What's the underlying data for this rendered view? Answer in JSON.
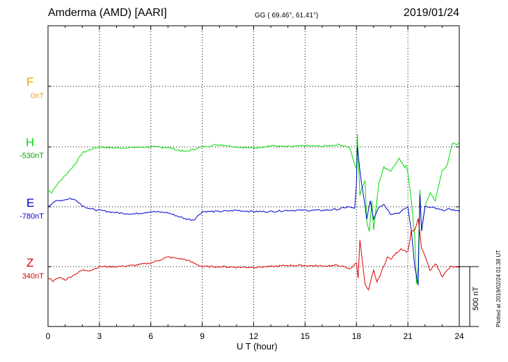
{
  "header": {
    "station": "Amderma (AMD)  [AARI]",
    "coords": "GG ( 69.46°,  61.41°)",
    "date": "2019/01/24"
  },
  "plot_note": "Plotted at 2019/02/24 01:38 UT",
  "chart_data": {
    "type": "line",
    "xlabel": "U T (hour)",
    "xlim": [
      0,
      24
    ],
    "xticks": [
      "0",
      "3",
      "6",
      "9",
      "12",
      "15",
      "18",
      "21",
      "24"
    ],
    "grid": true,
    "scale_bar": {
      "label": "500 nT",
      "value_nT": 500
    },
    "colors": {
      "F": "#f0a000",
      "H": "#00dd00",
      "E": "#0000cc",
      "Z": "#dd0000"
    },
    "series": [
      {
        "name": "F",
        "baseline": "0nT",
        "x": [],
        "y": []
      },
      {
        "name": "H",
        "baseline": "-530nT",
        "x": [
          0,
          0.2,
          0.5,
          0.8,
          1.0,
          1.3,
          1.6,
          2.0,
          2.5,
          3.0,
          4.0,
          5.0,
          6.0,
          7.0,
          8.0,
          9.0,
          10.0,
          11.0,
          12.0,
          13.0,
          14.0,
          15.0,
          16.0,
          17.0,
          17.6,
          17.9,
          18.0,
          18.05,
          18.2,
          18.3,
          18.5,
          18.6,
          18.75,
          18.9,
          19.0,
          19.3,
          19.6,
          20.0,
          20.5,
          20.8,
          20.9,
          21.0,
          21.2,
          21.4,
          21.5,
          21.6,
          21.7,
          21.8,
          22.0,
          22.3,
          22.6,
          23.0,
          23.3,
          23.6,
          24.0
        ],
        "y": [
          -360,
          -380,
          -320,
          -270,
          -240,
          -190,
          -140,
          -50,
          -20,
          0,
          -10,
          -5,
          0,
          -5,
          -40,
          0,
          20,
          0,
          -10,
          10,
          0,
          10,
          5,
          20,
          -5,
          -150,
          -180,
          100,
          -400,
          -350,
          -280,
          -620,
          -700,
          -450,
          -700,
          -300,
          -170,
          -200,
          -100,
          -170,
          -150,
          -220,
          -450,
          -750,
          -1140,
          -1000,
          -360,
          -700,
          -500,
          -380,
          -450,
          -200,
          -150,
          30,
          20
        ]
      },
      {
        "name": "E",
        "baseline": "-780nT",
        "x": [
          0,
          0.3,
          0.6,
          1.0,
          1.3,
          1.7,
          2.0,
          2.5,
          3.0,
          4.0,
          5.0,
          6.0,
          7.0,
          8.0,
          8.5,
          9.0,
          10.0,
          11.0,
          12.0,
          13.0,
          14.0,
          15.0,
          16.0,
          17.0,
          17.5,
          17.7,
          17.9,
          18.0,
          18.05,
          18.2,
          18.4,
          18.6,
          18.8,
          19.0,
          19.3,
          19.6,
          20.0,
          20.5,
          21.0,
          21.2,
          21.4,
          21.6,
          21.7,
          21.8,
          22.0,
          22.5,
          23.0,
          23.5,
          24.0
        ],
        "y": [
          0,
          40,
          50,
          60,
          70,
          50,
          10,
          -20,
          -30,
          -50,
          -60,
          -40,
          -50,
          -100,
          -110,
          -40,
          -40,
          -30,
          -40,
          -40,
          -30,
          -30,
          -30,
          -20,
          0,
          -10,
          -10,
          200,
          500,
          300,
          100,
          -100,
          50,
          -100,
          0,
          20,
          -60,
          -50,
          0,
          -200,
          -500,
          -650,
          100,
          -200,
          0,
          -10,
          -30,
          -20,
          -40
        ]
      },
      {
        "name": "Z",
        "baseline": "340nT",
        "x": [
          0,
          0.3,
          0.7,
          1.0,
          1.5,
          2.0,
          2.5,
          3.0,
          4.0,
          5.0,
          6.0,
          7.0,
          8.0,
          9.0,
          10.0,
          11.0,
          12.0,
          13.0,
          14.0,
          15.0,
          16.0,
          17.0,
          17.6,
          18.0,
          18.1,
          18.2,
          18.3,
          18.5,
          18.7,
          19.0,
          19.2,
          19.5,
          19.8,
          20.0,
          20.3,
          20.6,
          21.0,
          21.2,
          21.4,
          21.6,
          21.8,
          22.0,
          22.3,
          22.6,
          23.0,
          23.5,
          24.0
        ],
        "y": [
          -90,
          -120,
          -90,
          -110,
          -70,
          -30,
          -30,
          0,
          0,
          10,
          30,
          80,
          60,
          0,
          0,
          -5,
          -5,
          0,
          10,
          10,
          5,
          10,
          -20,
          30,
          -100,
          230,
          100,
          -150,
          -200,
          -30,
          -130,
          -30,
          80,
          60,
          110,
          150,
          120,
          300,
          300,
          400,
          150,
          90,
          -40,
          30,
          -80,
          0,
          -10
        ]
      }
    ]
  }
}
